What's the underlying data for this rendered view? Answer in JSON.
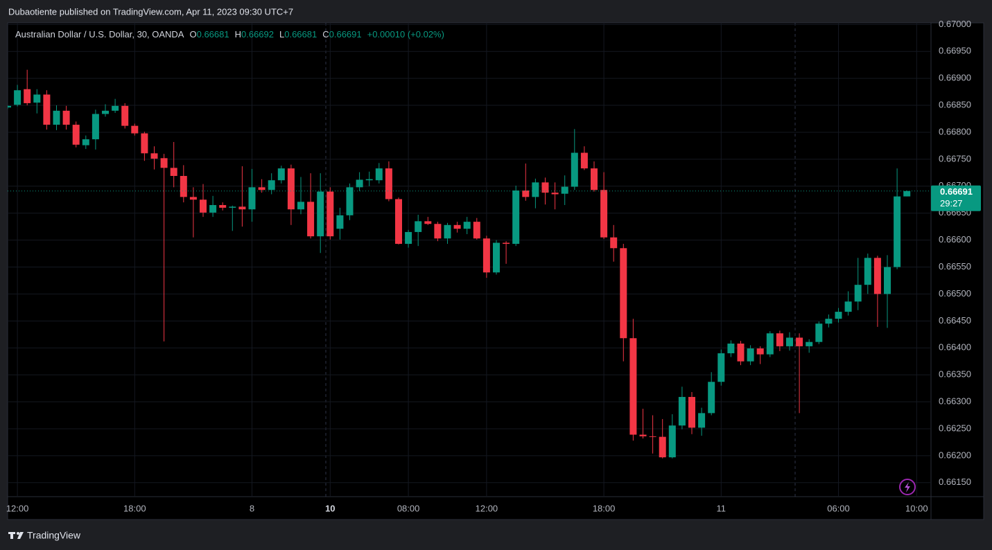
{
  "header": {
    "text": "Dubaotiente published on TradingView.com, Apr 11, 2023 09:30 UTC+7"
  },
  "footer": {
    "brand": "TradingView"
  },
  "chart_data": {
    "type": "candlestick",
    "title": "Australian Dollar / U.S. Dollar, 30, OANDA",
    "legend": [
      {
        "key": "O",
        "value": 0.66681
      },
      {
        "key": "H",
        "value": 0.66692
      },
      {
        "key": "L",
        "value": 0.66681
      },
      {
        "key": "C",
        "value": 0.66691
      }
    ],
    "change": "+0.00010 (+0.02%)",
    "countdown": "29:27",
    "up_color": "#089981",
    "down_color": "#f23645",
    "grid": true,
    "open": [
      0.66846,
      0.66851,
      0.6688,
      0.66855,
      0.6687,
      0.66814,
      0.6684,
      0.66814,
      0.66776,
      0.66787,
      0.66834,
      0.6684,
      0.66849,
      0.66812,
      0.66798,
      0.66761,
      0.66752,
      0.66734,
      0.66719,
      0.6668,
      0.66675,
      0.66651,
      0.66665,
      0.6666,
      0.66662,
      0.66657,
      0.66698,
      0.66693,
      0.66711,
      0.66733,
      0.66657,
      0.66671,
      0.66607,
      0.6669,
      0.66621,
      0.66646,
      0.66698,
      0.66711,
      0.66711,
      0.66733,
      0.66676,
      0.66593,
      0.66615,
      0.66635,
      0.6663,
      0.66603,
      0.66628,
      0.66621,
      0.66634,
      0.66603,
      0.6654,
      0.66595,
      0.66593,
      0.66692,
      0.6668,
      0.66707,
      0.66688,
      0.66686,
      0.66699,
      0.66762,
      0.66733,
      0.66693,
      0.66605,
      0.66585,
      0.66418,
      0.66239,
      0.66236,
      0.66235,
      0.66197,
      0.66256,
      0.66309,
      0.66252,
      0.66279,
      0.66337,
      0.6639,
      0.66408,
      0.66375,
      0.66399,
      0.66388,
      0.66427,
      0.66403,
      0.66419,
      0.66403,
      0.66411,
      0.66445,
      0.66454,
      0.66467,
      0.66486,
      0.66517,
      0.66567,
      0.665,
      0.6655,
      0.66681
    ],
    "high": [
      0.6685,
      0.66888,
      0.66916,
      0.6688,
      0.66878,
      0.6685,
      0.66849,
      0.6682,
      0.66794,
      0.66842,
      0.66852,
      0.66862,
      0.66854,
      0.66816,
      0.66801,
      0.66774,
      0.6676,
      0.66782,
      0.66739,
      0.66698,
      0.66704,
      0.66682,
      0.6667,
      0.66664,
      0.66737,
      0.66732,
      0.66713,
      0.66724,
      0.66738,
      0.6674,
      0.66717,
      0.66724,
      0.66724,
      0.66698,
      0.6666,
      0.66705,
      0.66726,
      0.66727,
      0.66743,
      0.66746,
      0.66679,
      0.66619,
      0.66647,
      0.66643,
      0.66634,
      0.66632,
      0.66634,
      0.66643,
      0.66641,
      0.66608,
      0.666,
      0.66598,
      0.66701,
      0.66742,
      0.66714,
      0.66716,
      0.66707,
      0.6672,
      0.66806,
      0.66774,
      0.66746,
      0.66726,
      0.66628,
      0.66593,
      0.66454,
      0.66287,
      0.66275,
      0.66268,
      0.66277,
      0.66328,
      0.66318,
      0.66289,
      0.66355,
      0.66397,
      0.66414,
      0.66413,
      0.66405,
      0.66403,
      0.66431,
      0.66432,
      0.66429,
      0.66427,
      0.66416,
      0.66449,
      0.66462,
      0.66474,
      0.66505,
      0.66567,
      0.66575,
      0.66571,
      0.66572,
      0.66733,
      0.66692
    ],
    "low": [
      0.66843,
      0.66848,
      0.6685,
      0.66835,
      0.66805,
      0.66804,
      0.66805,
      0.66772,
      0.66769,
      0.66768,
      0.66829,
      0.66836,
      0.66807,
      0.66794,
      0.66747,
      0.66731,
      0.66412,
      0.66698,
      0.6667,
      0.66605,
      0.66643,
      0.66643,
      0.66655,
      0.66617,
      0.66625,
      0.66634,
      0.66688,
      0.66685,
      0.66705,
      0.66628,
      0.66648,
      0.66603,
      0.66576,
      0.66601,
      0.66601,
      0.66637,
      0.66691,
      0.667,
      0.66705,
      0.66672,
      0.66592,
      0.66586,
      0.66589,
      0.66628,
      0.66598,
      0.66593,
      0.66614,
      0.66611,
      0.66601,
      0.6653,
      0.66536,
      0.66556,
      0.66589,
      0.66673,
      0.66659,
      0.66666,
      0.66657,
      0.66665,
      0.66693,
      0.6673,
      0.6669,
      0.66602,
      0.6656,
      0.66375,
      0.66228,
      0.66232,
      0.66204,
      0.66195,
      0.66195,
      0.66249,
      0.6624,
      0.66237,
      0.66275,
      0.6633,
      0.66383,
      0.66368,
      0.66368,
      0.6637,
      0.66383,
      0.66394,
      0.66395,
      0.66279,
      0.66391,
      0.66407,
      0.66438,
      0.66447,
      0.6646,
      0.6647,
      0.665,
      0.66439,
      0.66437,
      0.66546,
      0.66681
    ],
    "close": [
      0.66849,
      0.66878,
      0.66854,
      0.6687,
      0.66814,
      0.6684,
      0.66814,
      0.66777,
      0.66787,
      0.66834,
      0.6684,
      0.66849,
      0.66812,
      0.66798,
      0.66761,
      0.66751,
      0.66734,
      0.66719,
      0.6668,
      0.66675,
      0.66651,
      0.66665,
      0.6666,
      0.66662,
      0.66657,
      0.66698,
      0.66693,
      0.66711,
      0.66733,
      0.66657,
      0.66671,
      0.66607,
      0.6669,
      0.66607,
      0.66646,
      0.66698,
      0.66712,
      0.66713,
      0.66733,
      0.66676,
      0.66593,
      0.66615,
      0.66635,
      0.6663,
      0.66603,
      0.66628,
      0.66621,
      0.66634,
      0.66603,
      0.6654,
      0.66595,
      0.66593,
      0.66692,
      0.6668,
      0.66707,
      0.66688,
      0.66685,
      0.66699,
      0.66762,
      0.66733,
      0.66693,
      0.66605,
      0.66585,
      0.66418,
      0.66239,
      0.66236,
      0.66235,
      0.66197,
      0.66256,
      0.66309,
      0.66252,
      0.66279,
      0.66337,
      0.6639,
      0.66408,
      0.66375,
      0.66399,
      0.66388,
      0.66427,
      0.66403,
      0.66419,
      0.66403,
      0.66411,
      0.66445,
      0.66454,
      0.66467,
      0.66486,
      0.66517,
      0.66567,
      0.665,
      0.6655,
      0.66681,
      0.66691
    ],
    "ylim": [
      0.66124,
      0.67003
    ],
    "yticks": [
      {
        "value": 0.67,
        "label": "0.67000"
      },
      {
        "value": 0.6695,
        "label": "0.66950"
      },
      {
        "value": 0.669,
        "label": "0.66900"
      },
      {
        "value": 0.6685,
        "label": "0.66850"
      },
      {
        "value": 0.668,
        "label": "0.66800"
      },
      {
        "value": 0.6675,
        "label": "0.66750"
      },
      {
        "value": 0.667,
        "label": "0.66700"
      },
      {
        "value": 0.6665,
        "label": "0.66650"
      },
      {
        "value": 0.666,
        "label": "0.66600"
      },
      {
        "value": 0.6655,
        "label": "0.66550"
      },
      {
        "value": 0.665,
        "label": "0.66500"
      },
      {
        "value": 0.6645,
        "label": "0.66450"
      },
      {
        "value": 0.664,
        "label": "0.66400"
      },
      {
        "value": 0.6635,
        "label": "0.66350"
      },
      {
        "value": 0.663,
        "label": "0.66300"
      },
      {
        "value": 0.6625,
        "label": "0.66250"
      },
      {
        "value": 0.662,
        "label": "0.66200"
      },
      {
        "value": 0.6615,
        "label": "0.66150"
      }
    ],
    "xticks": [
      {
        "value": 1,
        "label": "12:00"
      },
      {
        "value": 13,
        "label": "18:00"
      },
      {
        "value": 25,
        "label": "8"
      },
      {
        "value": 33,
        "label": "10",
        "bold": true
      },
      {
        "value": 41,
        "label": "08:00"
      },
      {
        "value": 49,
        "label": "12:00"
      },
      {
        "value": 61,
        "label": "18:00"
      },
      {
        "value": 73,
        "label": "11"
      },
      {
        "value": 85,
        "label": "06:00"
      },
      {
        "value": 93,
        "label": "10:00"
      }
    ]
  }
}
